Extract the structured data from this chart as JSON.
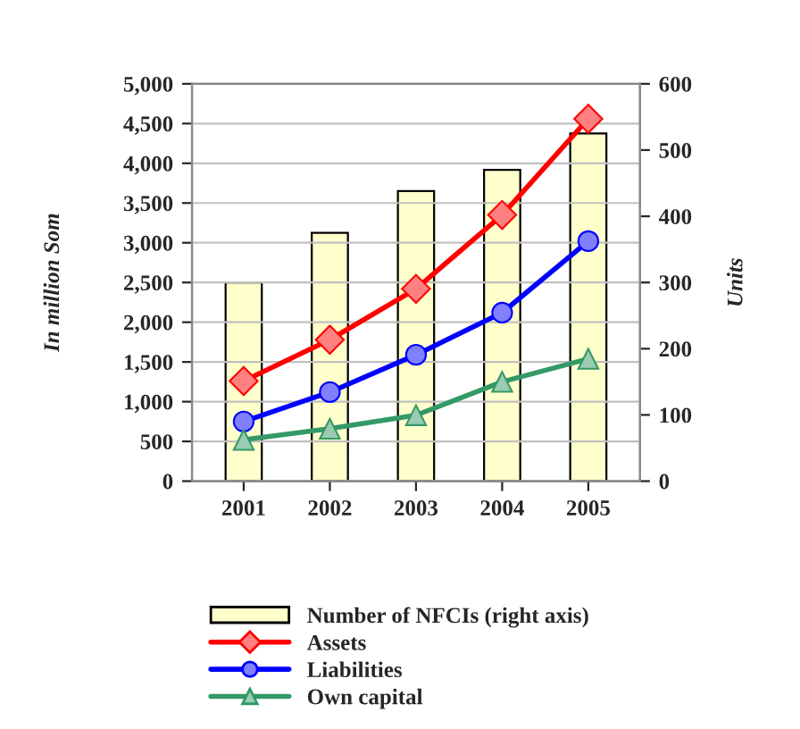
{
  "chart_data": {
    "type": "line",
    "categories": [
      "2001",
      "2002",
      "2003",
      "2004",
      "2005"
    ],
    "ylabel": "In million Som",
    "y2label": "Units",
    "series": [
      {
        "name": "Number of NFCIs (right axis)",
        "type": "bar",
        "axis": "y2",
        "color": "#ffffcc",
        "values": [
          300,
          375,
          438,
          470,
          525
        ]
      },
      {
        "name": "Assets",
        "color": "#ff0000",
        "marker": "diamond",
        "values": [
          1260,
          1780,
          2420,
          3350,
          4560
        ]
      },
      {
        "name": "Liabilities",
        "color": "#0000ff",
        "marker": "circle",
        "values": [
          750,
          1120,
          1590,
          2120,
          3020
        ]
      },
      {
        "name": "Own capital",
        "color": "#339966",
        "marker": "triangle",
        "values": [
          520,
          660,
          830,
          1250,
          1540
        ]
      }
    ],
    "ylim": [
      0,
      5000
    ],
    "yticks": [
      {
        "value": 0,
        "label": "0"
      },
      {
        "value": 500,
        "label": "500"
      },
      {
        "value": 1000,
        "label": "1,000"
      },
      {
        "value": 1500,
        "label": "1,500"
      },
      {
        "value": 2000,
        "label": "2,000"
      },
      {
        "value": 2500,
        "label": "2,500"
      },
      {
        "value": 3000,
        "label": "3,000"
      },
      {
        "value": 3500,
        "label": "3,500"
      },
      {
        "value": 4000,
        "label": "4,000"
      },
      {
        "value": 4500,
        "label": "4,500"
      },
      {
        "value": 5000,
        "label": "5,000"
      }
    ],
    "y2lim": [
      0,
      600
    ],
    "y2ticks": [
      0,
      100,
      200,
      300,
      400,
      500,
      600
    ],
    "grid": "y",
    "legend": "bottom"
  }
}
